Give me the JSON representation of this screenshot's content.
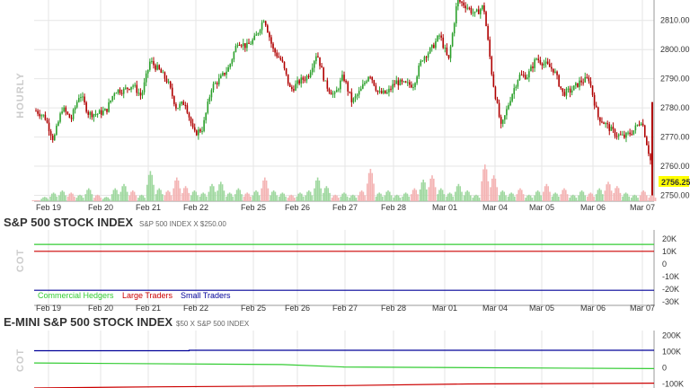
{
  "colors": {
    "up": "#2ca02c",
    "down": "#b00000",
    "vol_up": "#9fd89f",
    "vol_down": "#f4b4b4",
    "grid": "#e6e6e6",
    "price_box": "#ffff00",
    "commercial": "#33cc33",
    "large": "#cc0000",
    "small": "#000099"
  },
  "chart_data": [
    {
      "type": "candlestick",
      "side_label": "HOURLY",
      "x_labels": [
        "Feb 19",
        "Feb 20",
        "Feb 21",
        "Feb 22",
        "Feb 25",
        "Feb 26",
        "Feb 27",
        "Feb 28",
        "Mar 01",
        "Mar 04",
        "Mar 05",
        "Mar 06",
        "Mar 07"
      ],
      "y_ticks": [
        "2810.00",
        "2800.00",
        "2790.00",
        "2780.00",
        "2770.00",
        "2760.00",
        "2750.00"
      ],
      "ylim": [
        2748,
        2817
      ],
      "last_price": "2756.25",
      "close_path": [
        [
          0,
          2779
        ],
        [
          1,
          2777
        ],
        [
          2,
          2769
        ],
        [
          3,
          2780
        ],
        [
          4,
          2776
        ],
        [
          5,
          2785
        ],
        [
          6,
          2778
        ],
        [
          7,
          2778
        ],
        [
          8,
          2779
        ],
        [
          9,
          2786
        ],
        [
          10,
          2786
        ],
        [
          11,
          2788
        ],
        [
          12,
          2784
        ],
        [
          13,
          2796
        ],
        [
          14,
          2793
        ],
        [
          15,
          2789
        ],
        [
          16,
          2780
        ],
        [
          17,
          2782
        ],
        [
          18,
          2771
        ],
        [
          19,
          2773
        ],
        [
          20,
          2787
        ],
        [
          21,
          2790
        ],
        [
          22,
          2794
        ],
        [
          23,
          2803
        ],
        [
          24,
          2801
        ],
        [
          25,
          2804
        ],
        [
          26,
          2811
        ],
        [
          27,
          2800
        ],
        [
          28,
          2796
        ],
        [
          29,
          2786
        ],
        [
          30,
          2789
        ],
        [
          31,
          2791
        ],
        [
          32,
          2799
        ],
        [
          33,
          2788
        ],
        [
          34,
          2784
        ],
        [
          35,
          2791
        ],
        [
          36,
          2782
        ],
        [
          37,
          2786
        ],
        [
          38,
          2792
        ],
        [
          39,
          2785
        ],
        [
          40,
          2785
        ],
        [
          41,
          2789
        ],
        [
          42,
          2788
        ],
        [
          43,
          2788
        ],
        [
          44,
          2797
        ],
        [
          45,
          2800
        ],
        [
          46,
          2805
        ],
        [
          47,
          2796
        ],
        [
          48,
          2817
        ],
        [
          49,
          2815
        ],
        [
          50,
          2812
        ],
        [
          51,
          2815
        ],
        [
          52,
          2790
        ],
        [
          53,
          2773
        ],
        [
          54,
          2783
        ],
        [
          55,
          2791
        ],
        [
          56,
          2791
        ],
        [
          57,
          2797
        ],
        [
          58,
          2795
        ],
        [
          59,
          2793
        ],
        [
          60,
          2785
        ],
        [
          61,
          2786
        ],
        [
          62,
          2789
        ],
        [
          63,
          2790
        ],
        [
          64,
          2777
        ],
        [
          65,
          2774
        ],
        [
          66,
          2771
        ],
        [
          67,
          2770
        ],
        [
          68,
          2772
        ],
        [
          69,
          2776
        ],
        [
          70,
          2762
        ]
      ],
      "volume": [
        [
          0,
          "d",
          0
        ],
        [
          1,
          "u",
          2
        ],
        [
          2,
          "u",
          4
        ],
        [
          3,
          "u",
          5
        ],
        [
          4,
          "d",
          4
        ],
        [
          5,
          "u",
          3
        ],
        [
          6,
          "u",
          6
        ],
        [
          7,
          "d",
          3
        ],
        [
          8,
          "u",
          2
        ],
        [
          9,
          "u",
          6
        ],
        [
          10,
          "u",
          8
        ],
        [
          11,
          "d",
          5
        ],
        [
          12,
          "u",
          3
        ],
        [
          13,
          "u",
          14
        ],
        [
          14,
          "u",
          6
        ],
        [
          15,
          "d",
          5
        ],
        [
          16,
          "d",
          11
        ],
        [
          17,
          "d",
          7
        ],
        [
          18,
          "u",
          5
        ],
        [
          19,
          "u",
          4
        ],
        [
          20,
          "u",
          8
        ],
        [
          21,
          "u",
          9
        ],
        [
          22,
          "u",
          4
        ],
        [
          23,
          "u",
          6
        ],
        [
          24,
          "d",
          4
        ],
        [
          25,
          "u",
          5
        ],
        [
          26,
          "d",
          11
        ],
        [
          27,
          "u",
          5
        ],
        [
          28,
          "u",
          4
        ],
        [
          29,
          "d",
          3
        ],
        [
          30,
          "u",
          4
        ],
        [
          31,
          "u",
          5
        ],
        [
          32,
          "u",
          11
        ],
        [
          33,
          "u",
          7
        ],
        [
          34,
          "d",
          3
        ],
        [
          35,
          "u",
          4
        ],
        [
          36,
          "u",
          3
        ],
        [
          37,
          "d",
          5
        ],
        [
          38,
          "d",
          15
        ],
        [
          39,
          "u",
          4
        ],
        [
          40,
          "u",
          5
        ],
        [
          41,
          "u",
          3
        ],
        [
          42,
          "u",
          4
        ],
        [
          43,
          "d",
          6
        ],
        [
          44,
          "u",
          10
        ],
        [
          45,
          "d",
          12
        ],
        [
          46,
          "u",
          6
        ],
        [
          47,
          "u",
          4
        ],
        [
          48,
          "u",
          8
        ],
        [
          49,
          "u",
          5
        ],
        [
          50,
          "u",
          3
        ],
        [
          51,
          "d",
          17
        ],
        [
          52,
          "d",
          12
        ],
        [
          53,
          "u",
          5
        ],
        [
          54,
          "u",
          4
        ],
        [
          55,
          "d",
          6
        ],
        [
          56,
          "u",
          3
        ],
        [
          57,
          "u",
          5
        ],
        [
          58,
          "d",
          8
        ],
        [
          59,
          "u",
          4
        ],
        [
          60,
          "d",
          6
        ],
        [
          61,
          "u",
          3
        ],
        [
          62,
          "u",
          5
        ],
        [
          63,
          "d",
          4
        ],
        [
          64,
          "u",
          6
        ],
        [
          65,
          "d",
          9
        ],
        [
          66,
          "d",
          7
        ],
        [
          67,
          "u",
          4
        ],
        [
          68,
          "u",
          3
        ],
        [
          69,
          "d",
          5
        ],
        [
          70,
          "d",
          3
        ]
      ]
    },
    {
      "type": "line",
      "title": "S&P 500 STOCK INDEX",
      "subtitle": "S&P 500 INDEX X $250.00",
      "side_label": "COT",
      "y_ticks": [
        "20K",
        "10K",
        "0",
        "-10K",
        "-20K",
        "-30K"
      ],
      "ylim": [
        -33000,
        27000
      ],
      "series": [
        {
          "name": "Commercial Hedgers",
          "color_key": "commercial",
          "values": [
            15500,
            15500
          ]
        },
        {
          "name": "Large Traders",
          "color_key": "large",
          "values": [
            10000,
            10000
          ]
        },
        {
          "name": "Small Traders",
          "color_key": "small",
          "values": [
            -21000,
            -21000
          ]
        }
      ]
    },
    {
      "type": "line",
      "title": "E-MINI S&P 500 STOCK INDEX",
      "subtitle": "$50 X S&P 500 INDEX",
      "side_label": "COT",
      "y_ticks": [
        "200K",
        "100K",
        "0",
        "-100K"
      ],
      "ylim": [
        -125000,
        230000
      ],
      "series": [
        {
          "color_key": "small",
          "values": [
            [
              0,
              105000
            ],
            [
              0.25,
              105000
            ],
            [
              0.25,
              108000
            ],
            [
              1,
              108000
            ]
          ]
        },
        {
          "color_key": "commercial",
          "values": [
            [
              0,
              30000
            ],
            [
              0.4,
              20000
            ],
            [
              0.5,
              5000
            ],
            [
              1,
              -5000
            ]
          ]
        },
        {
          "color_key": "large",
          "values": [
            [
              0,
              -125000
            ],
            [
              0.2,
              -118000
            ],
            [
              0.5,
              -110000
            ],
            [
              0.7,
              -100000
            ],
            [
              1,
              -95000
            ]
          ]
        }
      ]
    }
  ]
}
